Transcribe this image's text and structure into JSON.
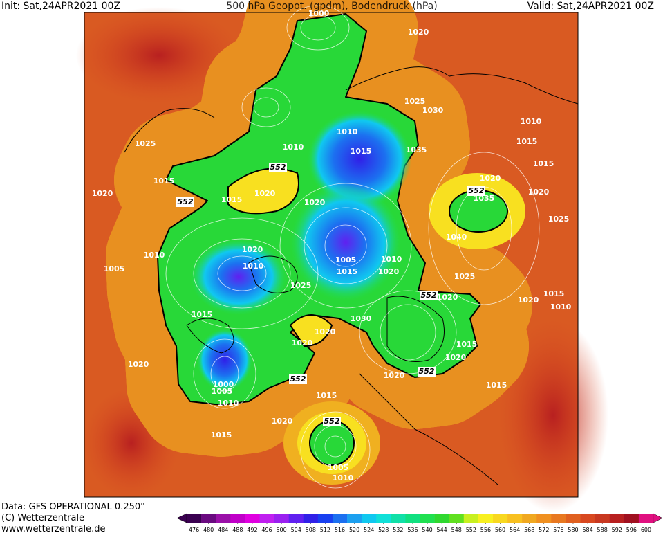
{
  "header": {
    "init": "Init: Sat,24APR2021 00Z",
    "title": "500 hPa Geopot. (gpdm), Bodendruck (hPa)",
    "valid": "Valid: Sat,24APR2021 00Z"
  },
  "footer": {
    "source": "Data: GFS OPERATIONAL 0.250°",
    "copyright": "(C) Wetterzentrale",
    "url": "www.wetterzentrale.de"
  },
  "colorbar": {
    "ticks": [
      476,
      480,
      484,
      488,
      492,
      496,
      500,
      504,
      508,
      512,
      516,
      520,
      524,
      528,
      532,
      536,
      540,
      544,
      548,
      552,
      556,
      560,
      564,
      568,
      572,
      576,
      580,
      584,
      588,
      592,
      596,
      600
    ],
    "colors": [
      "#3a0050",
      "#6a0a80",
      "#9a10a8",
      "#c000c8",
      "#e000e0",
      "#c020f0",
      "#9a20f0",
      "#6020f0",
      "#3020e8",
      "#1840f0",
      "#1c70f0",
      "#1ca0f0",
      "#10c8f0",
      "#10e0d8",
      "#10e0a8",
      "#10e080",
      "#20e050",
      "#30d830",
      "#60e020",
      "#c8f020",
      "#f8f020",
      "#f8d820",
      "#f8c020",
      "#f0a820",
      "#f09020",
      "#e87820",
      "#e06020",
      "#d84820",
      "#c83820",
      "#b82020",
      "#a01020",
      "#e01080"
    ]
  },
  "labels": [
    "1000",
    "1020",
    "1025",
    "1030",
    "1010",
    "1025",
    "1010",
    "1010",
    "1015",
    "1035",
    "1015",
    "1015",
    "552",
    "1015",
    "1020",
    "1020",
    "1020",
    "552",
    "1035",
    "1020",
    "552",
    "1015",
    "1020",
    "1025",
    "1040",
    "1020",
    "1005",
    "1010",
    "1010",
    "1005",
    "1010",
    "1015",
    "1020",
    "1025",
    "1025",
    "552",
    "1020",
    "1020",
    "1015",
    "1010",
    "1015",
    "1030",
    "1020",
    "1020",
    "1015",
    "1020",
    "1020",
    "1020",
    "552",
    "552",
    "1000",
    "1005",
    "1015",
    "1010",
    "1015",
    "552",
    "1020",
    "1015",
    "1005",
    "1010"
  ]
}
